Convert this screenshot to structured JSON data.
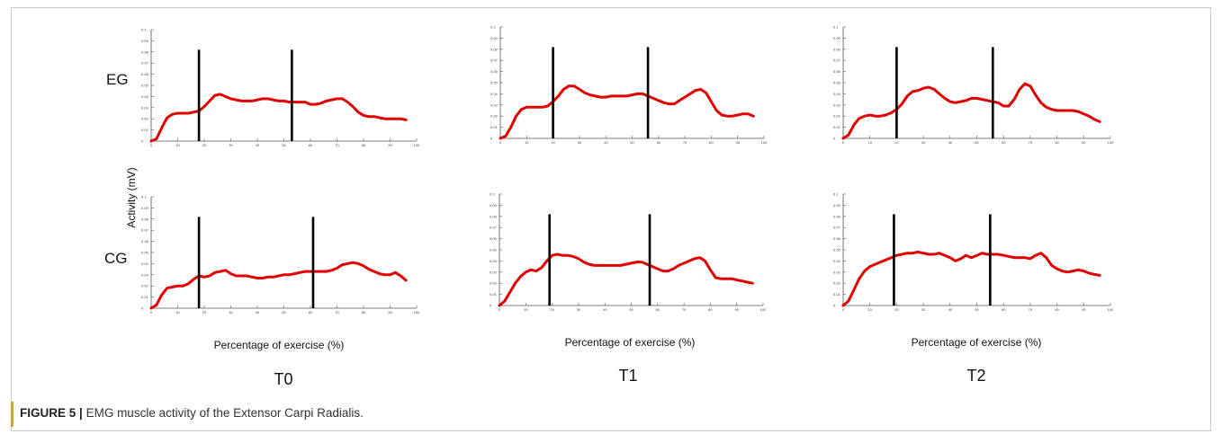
{
  "caption": {
    "label": "FIGURE 5 |",
    "text": "EMG muscle activity of the Extensor Carpi Radialis."
  },
  "labels": {
    "ylabel": "Activity (mV)",
    "xlabel": "Percentage of exercise (%)",
    "rows": [
      "EG",
      "CG"
    ],
    "columns": [
      "T0",
      "T1",
      "T2"
    ]
  },
  "colors": {
    "line": "#e00000",
    "marker": "#000000",
    "axis": "#555555"
  },
  "chart_data": [
    {
      "type": "line",
      "group": "EG",
      "time": "T0",
      "x": [
        0,
        2,
        4,
        6,
        8,
        10,
        12,
        14,
        16,
        18,
        20,
        22,
        24,
        26,
        28,
        30,
        32,
        34,
        36,
        38,
        40,
        42,
        44,
        46,
        48,
        50,
        52,
        54,
        56,
        58,
        60,
        62,
        64,
        66,
        68,
        70,
        72,
        74,
        76,
        78,
        80,
        82,
        84,
        86,
        88,
        90,
        92,
        94,
        96
      ],
      "y": [
        0.0,
        0.002,
        0.012,
        0.021,
        0.024,
        0.025,
        0.025,
        0.025,
        0.026,
        0.027,
        0.031,
        0.036,
        0.041,
        0.042,
        0.04,
        0.038,
        0.037,
        0.036,
        0.036,
        0.036,
        0.037,
        0.038,
        0.038,
        0.037,
        0.036,
        0.036,
        0.035,
        0.035,
        0.035,
        0.035,
        0.033,
        0.033,
        0.034,
        0.036,
        0.037,
        0.038,
        0.038,
        0.035,
        0.031,
        0.026,
        0.023,
        0.022,
        0.022,
        0.021,
        0.02,
        0.02,
        0.02,
        0.02,
        0.019
      ],
      "markers": [
        18,
        53
      ],
      "xlim": [
        0,
        100
      ],
      "ylim": [
        0,
        0.1
      ],
      "xticks": [
        "0",
        "10",
        "20",
        "30",
        "40",
        "50",
        "60",
        "70",
        "80",
        "90",
        "100"
      ],
      "yticks": [
        "0",
        "0.01",
        "0.02",
        "0.03",
        "0.04",
        "0.05",
        "0.06",
        "0.07",
        "0.08",
        "0.09",
        "0.1"
      ]
    },
    {
      "type": "line",
      "group": "EG",
      "time": "T1",
      "x": [
        0,
        2,
        4,
        6,
        8,
        10,
        12,
        14,
        16,
        18,
        20,
        22,
        24,
        26,
        28,
        30,
        32,
        34,
        36,
        38,
        40,
        42,
        44,
        46,
        48,
        50,
        52,
        54,
        56,
        58,
        60,
        62,
        64,
        66,
        68,
        70,
        72,
        74,
        76,
        78,
        80,
        82,
        84,
        86,
        88,
        90,
        92,
        94,
        96
      ],
      "y": [
        0.0,
        0.002,
        0.01,
        0.02,
        0.026,
        0.028,
        0.028,
        0.028,
        0.028,
        0.029,
        0.033,
        0.038,
        0.044,
        0.047,
        0.047,
        0.044,
        0.041,
        0.039,
        0.038,
        0.037,
        0.037,
        0.038,
        0.038,
        0.038,
        0.038,
        0.039,
        0.04,
        0.04,
        0.038,
        0.036,
        0.034,
        0.032,
        0.031,
        0.031,
        0.034,
        0.037,
        0.04,
        0.043,
        0.044,
        0.041,
        0.033,
        0.025,
        0.021,
        0.02,
        0.02,
        0.021,
        0.022,
        0.022,
        0.02
      ],
      "markers": [
        20,
        56
      ],
      "xlim": [
        0,
        100
      ],
      "ylim": [
        0,
        0.1
      ],
      "xticks": [
        "0",
        "10",
        "20",
        "30",
        "40",
        "50",
        "60",
        "70",
        "80",
        "90",
        "100"
      ],
      "yticks": [
        "0",
        "0.01",
        "0.02",
        "0.03",
        "0.04",
        "0.05",
        "0.06",
        "0.07",
        "0.08",
        "0.09",
        "0.1"
      ]
    },
    {
      "type": "line",
      "group": "EG",
      "time": "T2",
      "x": [
        0,
        2,
        4,
        6,
        8,
        10,
        12,
        14,
        16,
        18,
        20,
        22,
        24,
        26,
        28,
        30,
        32,
        34,
        36,
        38,
        40,
        42,
        44,
        46,
        48,
        50,
        52,
        54,
        56,
        58,
        60,
        62,
        64,
        66,
        68,
        70,
        72,
        74,
        76,
        78,
        80,
        82,
        84,
        86,
        88,
        90,
        92,
        94,
        96
      ],
      "y": [
        0.0,
        0.003,
        0.012,
        0.018,
        0.02,
        0.021,
        0.02,
        0.02,
        0.021,
        0.023,
        0.026,
        0.031,
        0.038,
        0.042,
        0.043,
        0.045,
        0.046,
        0.044,
        0.04,
        0.036,
        0.033,
        0.032,
        0.033,
        0.034,
        0.036,
        0.036,
        0.035,
        0.034,
        0.033,
        0.032,
        0.029,
        0.029,
        0.035,
        0.044,
        0.049,
        0.047,
        0.039,
        0.032,
        0.028,
        0.026,
        0.025,
        0.025,
        0.025,
        0.025,
        0.024,
        0.022,
        0.02,
        0.017,
        0.015
      ],
      "markers": [
        20,
        56
      ],
      "xlim": [
        0,
        100
      ],
      "ylim": [
        0,
        0.1
      ],
      "xticks": [
        "0",
        "10",
        "20",
        "30",
        "40",
        "50",
        "60",
        "70",
        "80",
        "90",
        "100"
      ],
      "yticks": [
        "0",
        "0.01",
        "0.02",
        "0.03",
        "0.04",
        "0.05",
        "0.06",
        "0.07",
        "0.08",
        "0.09",
        "0.1"
      ]
    },
    {
      "type": "line",
      "group": "CG",
      "time": "T0",
      "x": [
        0,
        2,
        4,
        6,
        8,
        10,
        12,
        14,
        16,
        18,
        20,
        22,
        24,
        26,
        28,
        30,
        32,
        34,
        36,
        38,
        40,
        42,
        44,
        46,
        48,
        50,
        52,
        54,
        56,
        58,
        60,
        62,
        64,
        66,
        68,
        70,
        72,
        74,
        76,
        78,
        80,
        82,
        84,
        86,
        88,
        90,
        92,
        94,
        96
      ],
      "y": [
        0.0,
        0.003,
        0.012,
        0.018,
        0.019,
        0.02,
        0.02,
        0.022,
        0.026,
        0.029,
        0.028,
        0.029,
        0.032,
        0.033,
        0.034,
        0.031,
        0.029,
        0.029,
        0.029,
        0.028,
        0.027,
        0.027,
        0.028,
        0.028,
        0.029,
        0.03,
        0.03,
        0.031,
        0.032,
        0.033,
        0.033,
        0.033,
        0.033,
        0.033,
        0.034,
        0.036,
        0.039,
        0.04,
        0.041,
        0.04,
        0.038,
        0.035,
        0.033,
        0.031,
        0.03,
        0.03,
        0.032,
        0.029,
        0.025
      ],
      "markers": [
        18,
        61
      ],
      "xlim": [
        0,
        100
      ],
      "ylim": [
        0,
        0.1
      ],
      "xticks": [
        "0",
        "10",
        "20",
        "30",
        "40",
        "50",
        "60",
        "70",
        "80",
        "90",
        "100"
      ],
      "yticks": [
        "0",
        "0.01",
        "0.02",
        "0.03",
        "0.04",
        "0.05",
        "0.06",
        "0.07",
        "0.08",
        "0.09",
        "0.1"
      ]
    },
    {
      "type": "line",
      "group": "CG",
      "time": "T1",
      "x": [
        0,
        2,
        4,
        6,
        8,
        10,
        12,
        14,
        16,
        18,
        20,
        22,
        24,
        26,
        28,
        30,
        32,
        34,
        36,
        38,
        40,
        42,
        44,
        46,
        48,
        50,
        52,
        54,
        56,
        58,
        60,
        62,
        64,
        66,
        68,
        70,
        72,
        74,
        76,
        78,
        80,
        82,
        84,
        86,
        88,
        90,
        92,
        94,
        96
      ],
      "y": [
        0.0,
        0.004,
        0.012,
        0.02,
        0.026,
        0.03,
        0.032,
        0.031,
        0.034,
        0.04,
        0.045,
        0.046,
        0.045,
        0.045,
        0.044,
        0.042,
        0.039,
        0.037,
        0.036,
        0.036,
        0.036,
        0.036,
        0.036,
        0.036,
        0.037,
        0.038,
        0.039,
        0.039,
        0.037,
        0.035,
        0.033,
        0.031,
        0.031,
        0.033,
        0.036,
        0.038,
        0.04,
        0.042,
        0.043,
        0.04,
        0.032,
        0.025,
        0.024,
        0.024,
        0.024,
        0.023,
        0.022,
        0.021,
        0.02
      ],
      "markers": [
        19,
        57
      ],
      "xlim": [
        0,
        100
      ],
      "ylim": [
        0,
        0.1
      ],
      "xticks": [
        "0",
        "10",
        "20",
        "30",
        "40",
        "50",
        "60",
        "70",
        "80",
        "90",
        "100"
      ],
      "yticks": [
        "0",
        "0.01",
        "0.02",
        "0.03",
        "0.04",
        "0.05",
        "0.06",
        "0.07",
        "0.08",
        "0.09",
        "0.1"
      ]
    },
    {
      "type": "line",
      "group": "CG",
      "time": "T2",
      "x": [
        0,
        2,
        4,
        6,
        8,
        10,
        12,
        14,
        16,
        18,
        20,
        22,
        24,
        26,
        28,
        30,
        32,
        34,
        36,
        38,
        40,
        42,
        44,
        46,
        48,
        50,
        52,
        54,
        56,
        58,
        60,
        62,
        64,
        66,
        68,
        70,
        72,
        74,
        76,
        78,
        80,
        82,
        84,
        86,
        88,
        90,
        92,
        94,
        96
      ],
      "y": [
        0.0,
        0.004,
        0.014,
        0.024,
        0.031,
        0.035,
        0.037,
        0.039,
        0.041,
        0.043,
        0.045,
        0.046,
        0.047,
        0.047,
        0.048,
        0.047,
        0.046,
        0.046,
        0.047,
        0.045,
        0.043,
        0.04,
        0.042,
        0.045,
        0.043,
        0.045,
        0.047,
        0.046,
        0.046,
        0.046,
        0.045,
        0.044,
        0.043,
        0.043,
        0.043,
        0.042,
        0.045,
        0.047,
        0.043,
        0.036,
        0.033,
        0.031,
        0.03,
        0.031,
        0.032,
        0.031,
        0.029,
        0.028,
        0.027
      ],
      "markers": [
        19,
        55
      ],
      "xlim": [
        0,
        100
      ],
      "ylim": [
        0,
        0.1
      ],
      "xticks": [
        "0",
        "10",
        "20",
        "30",
        "40",
        "50",
        "60",
        "70",
        "80",
        "90",
        "100"
      ],
      "yticks": [
        "0",
        "0.01",
        "0.02",
        "0.03",
        "0.04",
        "0.05",
        "0.06",
        "0.07",
        "0.08",
        "0.09",
        "0.1"
      ]
    }
  ]
}
